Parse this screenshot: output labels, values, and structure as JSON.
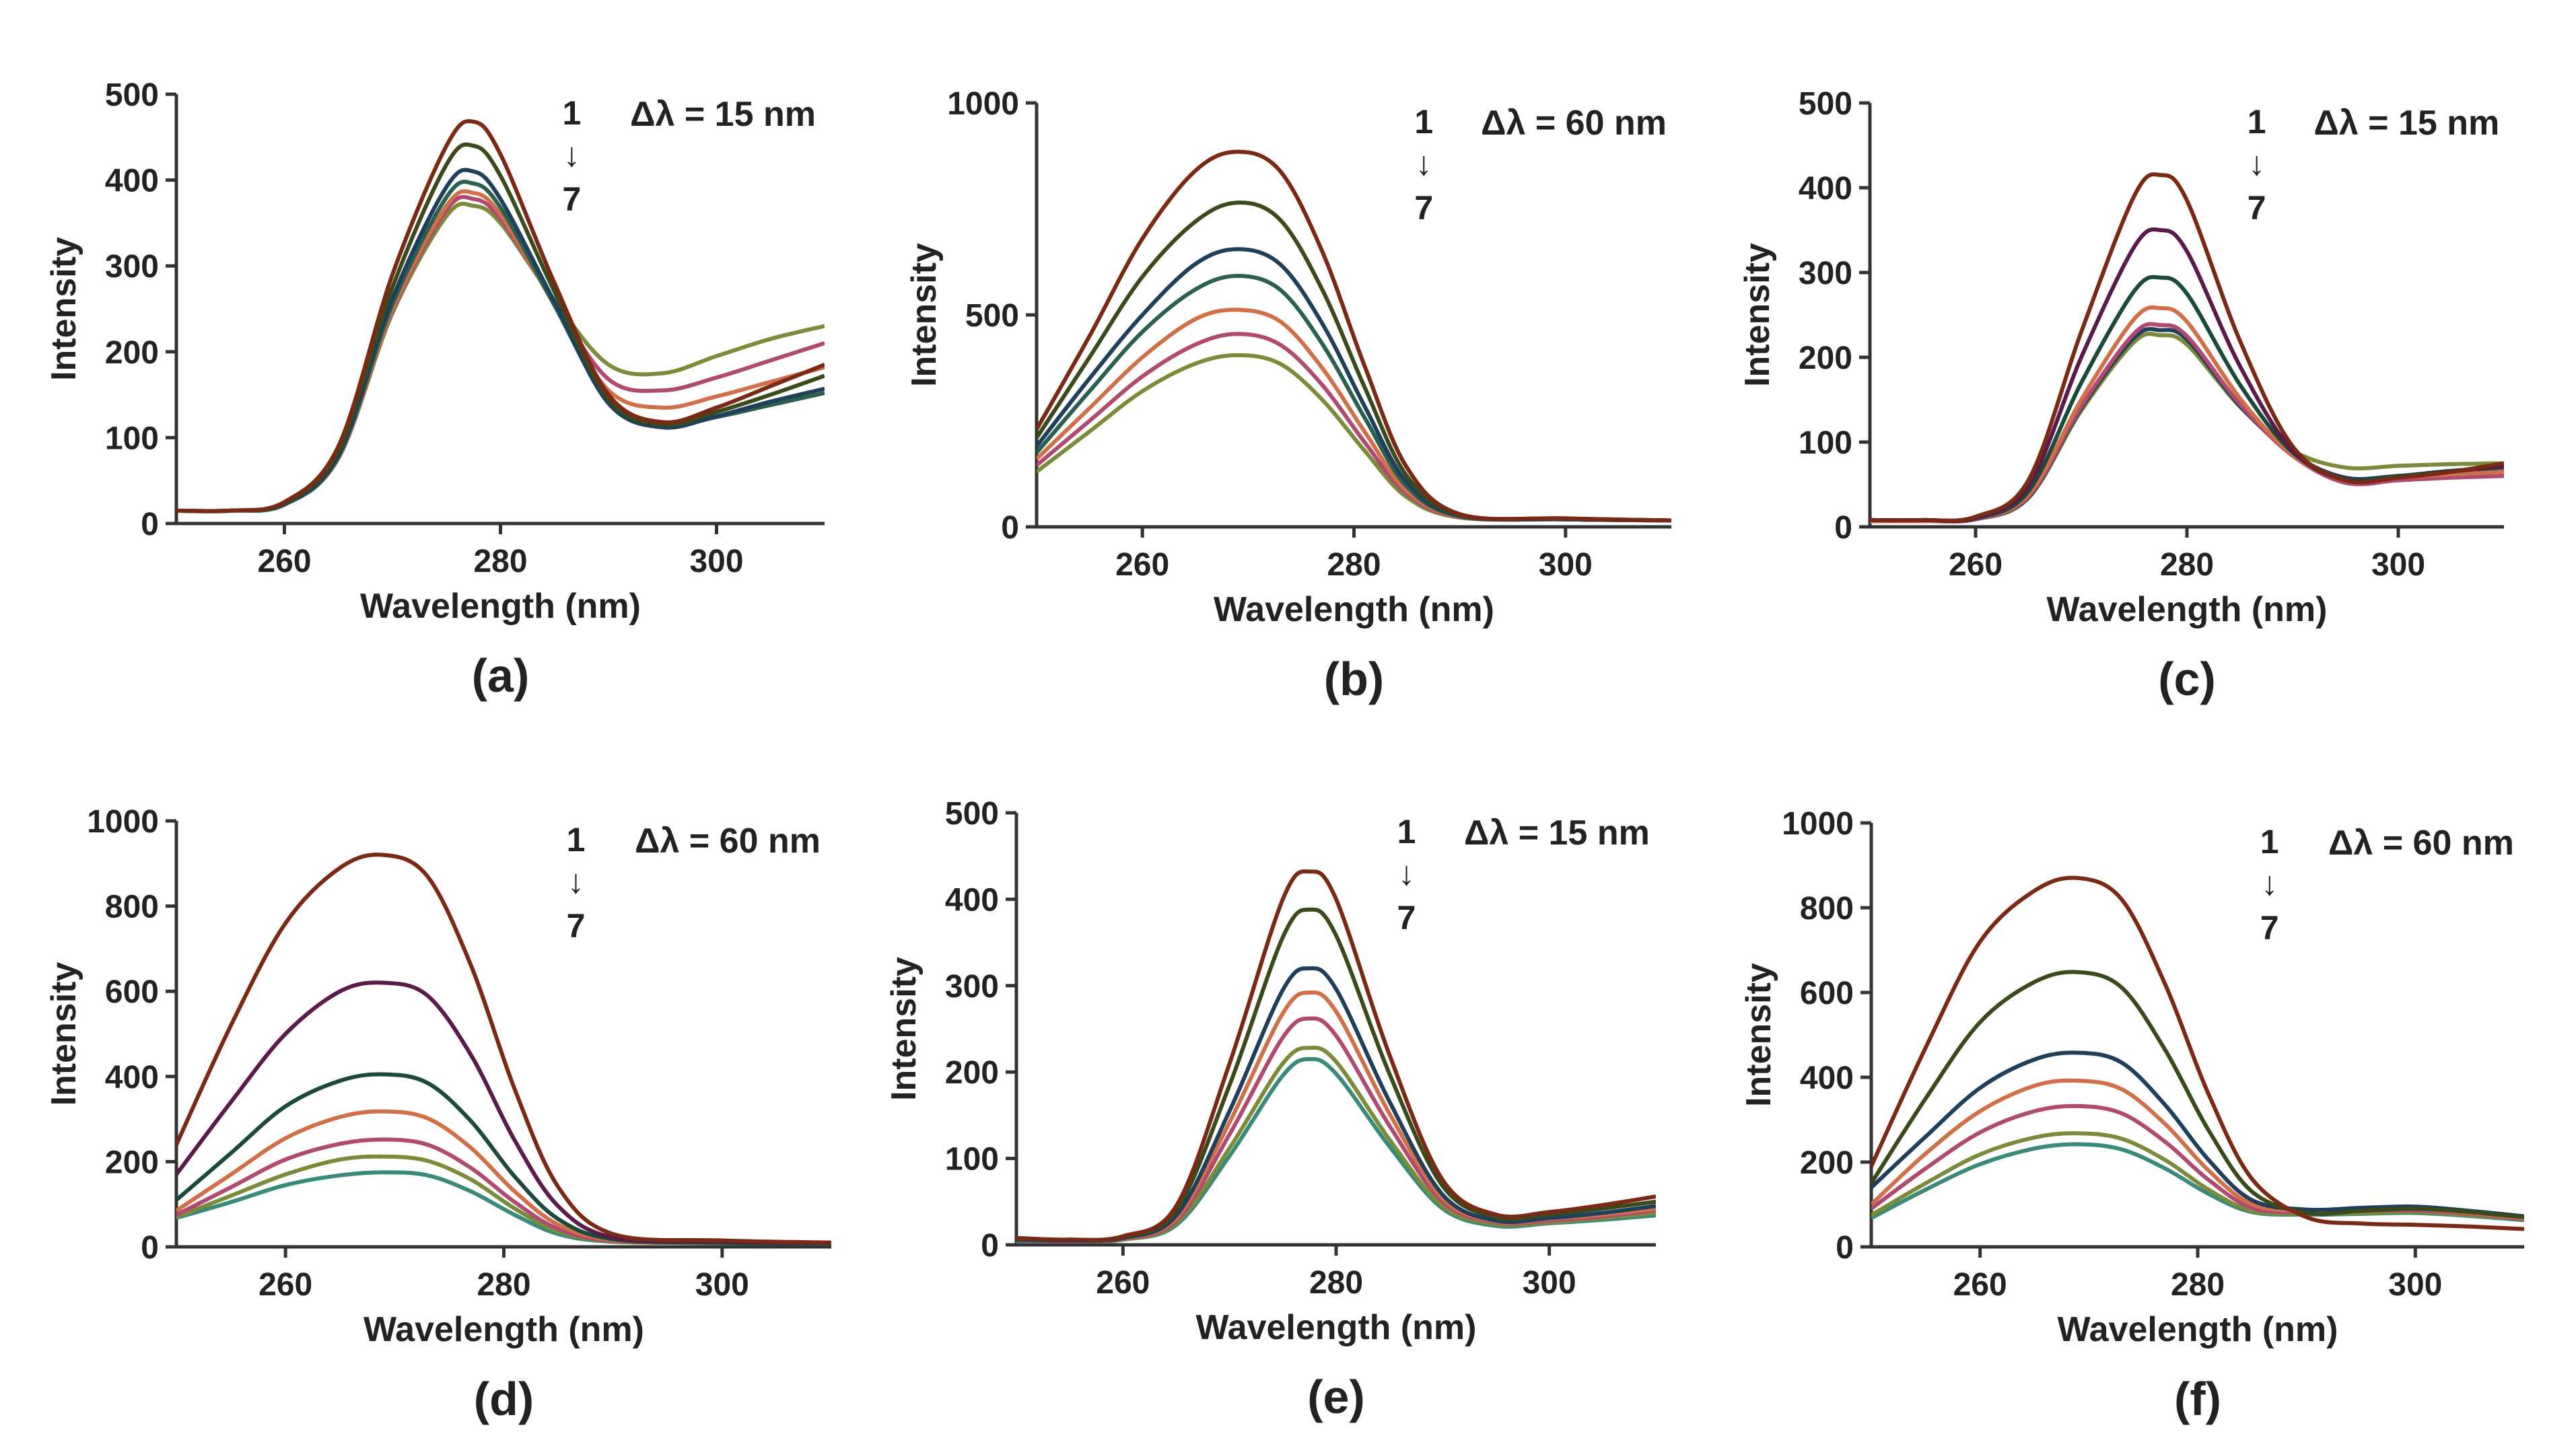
{
  "chart_data": [
    {
      "type": "line",
      "panel_label": "(a)",
      "xlabel": "Wavelength (nm)",
      "ylabel": "Intensity",
      "xlim": [
        250,
        310
      ],
      "ylim": [
        0,
        500
      ],
      "xticks": [
        260,
        280,
        300
      ],
      "yticks": [
        0,
        100,
        200,
        300,
        400,
        500
      ],
      "annotation": {
        "delta": "Δλ = 15 nm",
        "start": "1",
        "arrow": "↓",
        "end": "7"
      },
      "x": [
        250,
        255,
        260,
        265,
        270,
        275,
        277.5,
        280,
        285,
        290,
        295,
        300,
        305,
        310
      ],
      "series": [
        {
          "name": "1",
          "color": "#7a2a14",
          "values": [
            15,
            15,
            25,
            90,
            290,
            440,
            468,
            430,
            280,
            150,
            118,
            135,
            160,
            185
          ]
        },
        {
          "name": "2",
          "color": "#3a4a1a",
          "values": [
            15,
            15,
            24,
            85,
            275,
            418,
            440,
            405,
            270,
            145,
            115,
            130,
            150,
            172
          ]
        },
        {
          "name": "3",
          "color": "#1f3f5a",
          "values": [
            15,
            15,
            23,
            80,
            262,
            392,
            410,
            378,
            258,
            140,
            112,
            125,
            142,
            157
          ]
        },
        {
          "name": "4",
          "color": "#2a6050",
          "values": [
            15,
            15,
            22,
            78,
            255,
            380,
            396,
            368,
            254,
            142,
            114,
            124,
            138,
            152
          ]
        },
        {
          "name": "5",
          "color": "#d07048",
          "values": [
            15,
            15,
            22,
            78,
            250,
            370,
            385,
            360,
            255,
            155,
            135,
            148,
            165,
            182
          ]
        },
        {
          "name": "6",
          "color": "#b04a70",
          "values": [
            15,
            15,
            22,
            77,
            248,
            365,
            378,
            355,
            258,
            168,
            155,
            170,
            190,
            210
          ]
        },
        {
          "name": "7",
          "color": "#7a8c3a",
          "values": [
            15,
            15,
            22,
            76,
            245,
            358,
            370,
            350,
            260,
            185,
            175,
            195,
            215,
            230
          ]
        }
      ]
    },
    {
      "type": "line",
      "panel_label": "(b)",
      "xlabel": "Wavelength (nm)",
      "ylabel": "Intensity",
      "xlim": [
        250,
        310
      ],
      "ylim": [
        0,
        1000
      ],
      "xticks": [
        260,
        280,
        300
      ],
      "yticks": [
        0,
        500,
        1000
      ],
      "annotation": {
        "delta": "Δλ = 60 nm",
        "start": "1",
        "arrow": "↓",
        "end": "7"
      },
      "x": [
        250,
        255,
        260,
        265,
        269,
        273,
        277,
        281,
        285,
        290,
        300,
        310
      ],
      "series": [
        {
          "name": "1",
          "color": "#7a2a14",
          "values": [
            230,
            450,
            680,
            840,
            885,
            840,
            650,
            380,
            140,
            30,
            20,
            15
          ]
        },
        {
          "name": "2",
          "color": "#3a4a1a",
          "values": [
            210,
            400,
            590,
            720,
            765,
            725,
            560,
            330,
            120,
            28,
            20,
            15
          ]
        },
        {
          "name": "3",
          "color": "#1f3f5a",
          "values": [
            190,
            350,
            500,
            620,
            655,
            620,
            480,
            285,
            105,
            26,
            18,
            15
          ]
        },
        {
          "name": "4",
          "color": "#2a6050",
          "values": [
            175,
            320,
            460,
            560,
            592,
            560,
            432,
            258,
            95,
            25,
            18,
            15
          ]
        },
        {
          "name": "5",
          "color": "#d07048",
          "values": [
            160,
            280,
            400,
            490,
            512,
            485,
            375,
            225,
            85,
            24,
            18,
            15
          ]
        },
        {
          "name": "6",
          "color": "#b04a70",
          "values": [
            145,
            250,
            355,
            430,
            455,
            430,
            335,
            200,
            78,
            23,
            18,
            15
          ]
        },
        {
          "name": "7",
          "color": "#7a8c3a",
          "values": [
            130,
            225,
            320,
            385,
            405,
            385,
            300,
            180,
            70,
            22,
            18,
            15
          ]
        }
      ]
    },
    {
      "type": "line",
      "panel_label": "(c)",
      "xlabel": "Wavelength (nm)",
      "ylabel": "Intensity",
      "xlim": [
        250,
        310
      ],
      "ylim": [
        0,
        500
      ],
      "xticks": [
        260,
        280,
        300
      ],
      "yticks": [
        0,
        100,
        200,
        300,
        400,
        500
      ],
      "annotation": {
        "delta": "Δλ = 15 nm",
        "start": "1",
        "arrow": "↓",
        "end": "7"
      },
      "x": [
        250,
        255,
        260,
        265,
        270,
        275,
        277.5,
        280,
        285,
        290,
        295,
        300,
        305,
        310
      ],
      "series": [
        {
          "name": "1",
          "color": "#7a2a14",
          "values": [
            8,
            8,
            12,
            55,
            230,
            390,
            415,
            385,
            220,
            95,
            55,
            58,
            65,
            75
          ]
        },
        {
          "name": "2",
          "color": "#5a1a4a",
          "values": [
            8,
            8,
            11,
            48,
            200,
            330,
            350,
            325,
            190,
            90,
            55,
            58,
            65,
            72
          ]
        },
        {
          "name": "3",
          "color": "#1a4a3a",
          "values": [
            8,
            8,
            10,
            42,
            170,
            278,
            294,
            275,
            168,
            88,
            56,
            60,
            66,
            70
          ]
        },
        {
          "name": "4",
          "color": "#d07048",
          "values": [
            7,
            7,
            10,
            38,
            150,
            245,
            258,
            242,
            152,
            85,
            55,
            58,
            62,
            65
          ]
        },
        {
          "name": "5",
          "color": "#b04a70",
          "values": [
            7,
            7,
            9,
            36,
            142,
            228,
            238,
            225,
            145,
            84,
            52,
            55,
            58,
            60
          ]
        },
        {
          "name": "6",
          "color": "#1f3f5a",
          "values": [
            7,
            7,
            9,
            35,
            140,
            223,
            232,
            221,
            143,
            86,
            58,
            60,
            63,
            65
          ]
        },
        {
          "name": "7",
          "color": "#7a8c3a",
          "values": [
            7,
            7,
            9,
            34,
            137,
            218,
            226,
            215,
            142,
            90,
            70,
            72,
            74,
            75
          ]
        }
      ]
    },
    {
      "type": "line",
      "panel_label": "(d)",
      "xlabel": "Wavelength (nm)",
      "ylabel": "Intensity",
      "xlim": [
        250,
        310
      ],
      "ylim": [
        0,
        1000
      ],
      "xticks": [
        260,
        280,
        300
      ],
      "yticks": [
        0,
        200,
        400,
        600,
        800,
        1000
      ],
      "annotation": {
        "delta": "Δλ = 60 nm",
        "start": "1",
        "arrow": "↓",
        "end": "7"
      },
      "x": [
        250,
        255,
        260,
        265,
        269,
        273,
        277,
        281,
        285,
        290,
        300,
        310
      ],
      "series": [
        {
          "name": "1",
          "color": "#7a2a14",
          "values": [
            240,
            520,
            760,
            890,
            920,
            870,
            660,
            370,
            140,
            30,
            15,
            10
          ]
        },
        {
          "name": "2",
          "color": "#5a1a4a",
          "values": [
            170,
            340,
            500,
            600,
            620,
            590,
            450,
            250,
            95,
            22,
            12,
            10
          ]
        },
        {
          "name": "3",
          "color": "#1a4a3a",
          "values": [
            110,
            220,
            330,
            390,
            405,
            385,
            295,
            165,
            65,
            18,
            10,
            8
          ]
        },
        {
          "name": "4",
          "color": "#d07048",
          "values": [
            85,
            170,
            255,
            305,
            318,
            302,
            232,
            130,
            52,
            16,
            10,
            8
          ]
        },
        {
          "name": "5",
          "color": "#b04a70",
          "values": [
            75,
            140,
            205,
            242,
            252,
            240,
            185,
            105,
            42,
            14,
            10,
            8
          ]
        },
        {
          "name": "6",
          "color": "#7a8c3a",
          "values": [
            70,
            120,
            170,
            205,
            212,
            202,
            158,
            90,
            36,
            13,
            9,
            8
          ]
        },
        {
          "name": "7",
          "color": "#3a8a7a",
          "values": [
            68,
            105,
            145,
            168,
            175,
            168,
            130,
            75,
            30,
            12,
            9,
            8
          ]
        }
      ]
    },
    {
      "type": "line",
      "panel_label": "(e)",
      "xlabel": "Wavelength (nm)",
      "ylabel": "Intensity",
      "xlim": [
        250,
        310
      ],
      "ylim": [
        0,
        500
      ],
      "xticks": [
        260,
        280,
        300
      ],
      "yticks": [
        0,
        100,
        200,
        300,
        400,
        500
      ],
      "annotation": {
        "delta": "Δλ = 15 nm",
        "start": "1",
        "arrow": "↓",
        "end": "7"
      },
      "x": [
        250,
        255,
        260,
        265,
        270,
        275,
        277.5,
        280,
        285,
        290,
        295,
        300,
        305,
        310
      ],
      "series": [
        {
          "name": "1",
          "color": "#7a2a14",
          "values": [
            8,
            6,
            10,
            45,
            210,
            400,
            432,
            400,
            220,
            75,
            35,
            38,
            46,
            56
          ]
        },
        {
          "name": "2",
          "color": "#3a4a1a",
          "values": [
            7,
            6,
            9,
            40,
            185,
            356,
            388,
            358,
            198,
            68,
            32,
            35,
            42,
            50
          ]
        },
        {
          "name": "3",
          "color": "#1f3f5a",
          "values": [
            6,
            5,
            8,
            34,
            155,
            295,
            320,
            296,
            166,
            58,
            28,
            31,
            37,
            45
          ]
        },
        {
          "name": "4",
          "color": "#d07048",
          "values": [
            6,
            5,
            8,
            31,
            142,
            268,
            292,
            270,
            152,
            54,
            27,
            30,
            35,
            42
          ]
        },
        {
          "name": "5",
          "color": "#b04a70",
          "values": [
            5,
            4,
            7,
            28,
            128,
            240,
            262,
            242,
            138,
            50,
            26,
            28,
            33,
            40
          ]
        },
        {
          "name": "6",
          "color": "#7a8c3a",
          "values": [
            5,
            4,
            6,
            25,
            112,
            210,
            228,
            212,
            122,
            45,
            24,
            26,
            31,
            37
          ]
        },
        {
          "name": "7",
          "color": "#3a8a7a",
          "values": [
            4,
            3,
            6,
            23,
            103,
            196,
            215,
            198,
            114,
            42,
            22,
            25,
            29,
            34
          ]
        }
      ]
    },
    {
      "type": "line",
      "panel_label": "(f)",
      "xlabel": "Wavelength (nm)",
      "ylabel": "Intensity",
      "xlim": [
        250,
        310
      ],
      "ylim": [
        0,
        1000
      ],
      "xticks": [
        260,
        280,
        300
      ],
      "yticks": [
        0,
        200,
        400,
        600,
        800,
        1000
      ],
      "annotation": {
        "delta": "Δλ = 60 nm",
        "start": "1",
        "arrow": "↓",
        "end": "7"
      },
      "x": [
        250,
        255,
        260,
        265,
        269,
        273,
        277,
        281,
        285,
        290,
        295,
        300,
        305,
        310
      ],
      "series": [
        {
          "name": "1",
          "color": "#7a2a14",
          "values": [
            190,
            470,
            720,
            840,
            870,
            820,
            620,
            360,
            160,
            70,
            55,
            52,
            48,
            42
          ]
        },
        {
          "name": "2",
          "color": "#3a4a1a",
          "values": [
            150,
            350,
            530,
            625,
            648,
            612,
            465,
            275,
            130,
            80,
            85,
            90,
            82,
            70
          ]
        },
        {
          "name": "3",
          "color": "#1f3f5a",
          "values": [
            140,
            260,
            375,
            442,
            458,
            435,
            335,
            205,
            110,
            88,
            92,
            95,
            85,
            72
          ]
        },
        {
          "name": "4",
          "color": "#d07048",
          "values": [
            100,
            220,
            320,
            380,
            392,
            372,
            290,
            180,
            100,
            85,
            88,
            90,
            80,
            68
          ]
        },
        {
          "name": "5",
          "color": "#b04a70",
          "values": [
            90,
            185,
            270,
            320,
            332,
            315,
            248,
            158,
            92,
            82,
            85,
            86,
            78,
            66
          ]
        },
        {
          "name": "6",
          "color": "#7a8c3a",
          "values": [
            75,
            150,
            218,
            258,
            268,
            255,
            205,
            135,
            85,
            78,
            80,
            82,
            75,
            65
          ]
        },
        {
          "name": "7",
          "color": "#3a8a7a",
          "values": [
            68,
            135,
            195,
            232,
            242,
            230,
            185,
            125,
            82,
            76,
            78,
            80,
            73,
            63
          ]
        }
      ]
    }
  ]
}
